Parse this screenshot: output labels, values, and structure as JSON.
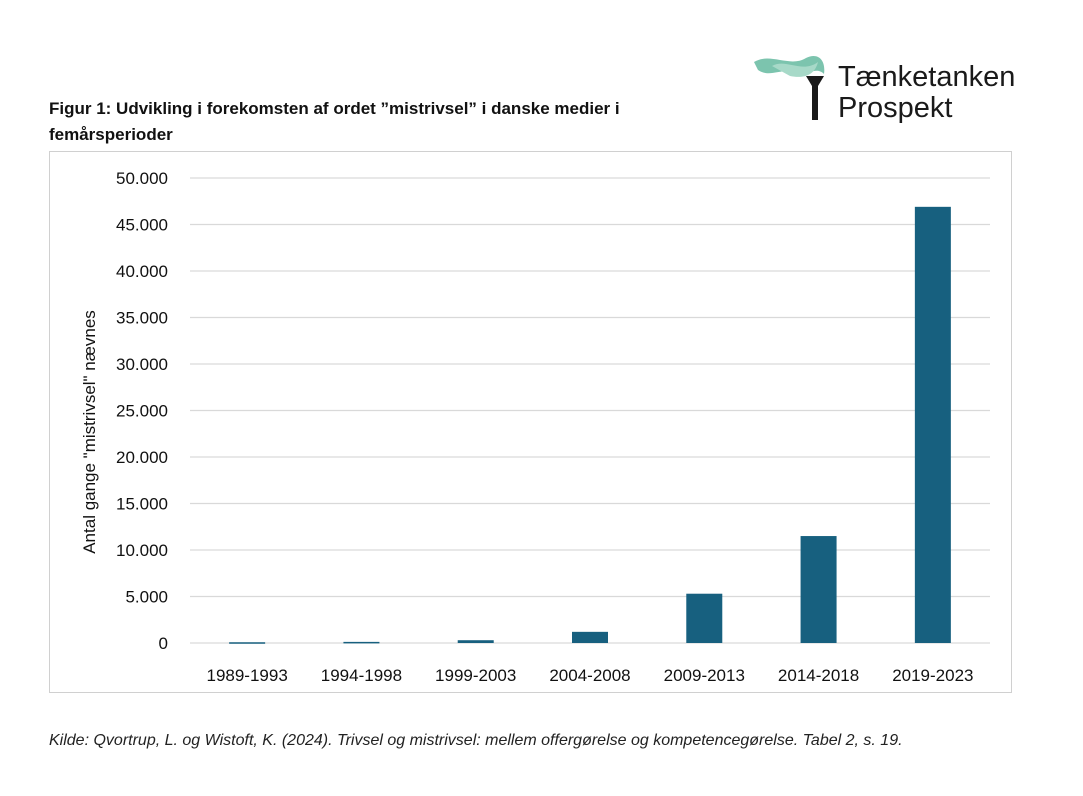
{
  "title": "Figur 1: Udvikling i forekomsten af ordet ”mistrivsel” i danske medier i femårsperioder",
  "logo": {
    "line1": "Tænketanken",
    "line2": "Prospekt",
    "flame_color": "#7cc4ae",
    "torch_color": "#1a1a1a"
  },
  "source": "Kilde: Qvortrup, L. og Wistoft, K. (2024). Trivsel og mistrivsel: mellem offergørelse og kompetencegørelse. Tabel 2, s. 19.",
  "chart_data": {
    "type": "bar",
    "categories": [
      "1989-1993",
      "1994-1998",
      "1999-2003",
      "2004-2008",
      "2009-2013",
      "2014-2018",
      "2019-2023"
    ],
    "values": [
      80,
      120,
      300,
      1200,
      5300,
      11500,
      46900
    ],
    "xlabel": "",
    "ylabel": "Antal gange \"mistrivsel\" nævnes",
    "ylim": [
      0,
      50000
    ],
    "yticks": [
      0,
      5000,
      10000,
      15000,
      20000,
      25000,
      30000,
      35000,
      40000,
      45000,
      50000
    ],
    "ytick_labels": [
      "0",
      "5.000",
      "10.000",
      "15.000",
      "20.000",
      "25.000",
      "30.000",
      "35.000",
      "40.000",
      "45.000",
      "50.000"
    ],
    "grid": true,
    "bar_color": "#17607f"
  }
}
